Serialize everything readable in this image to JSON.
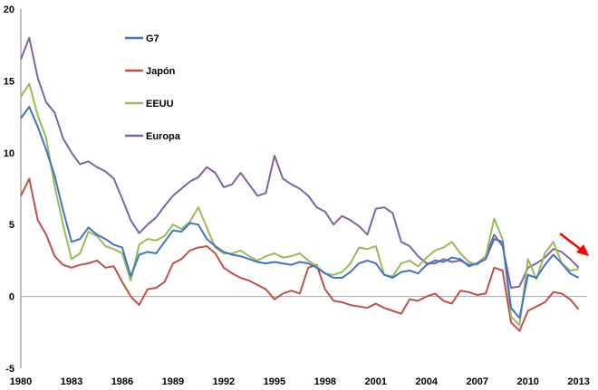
{
  "chart_data": {
    "type": "line",
    "title": "",
    "xlabel": "",
    "ylabel": "",
    "xlim": [
      1980,
      2013.5
    ],
    "ylim": [
      -5,
      20
    ],
    "yticks": [
      -5,
      0,
      5,
      10,
      15,
      20
    ],
    "xticks": [
      1980,
      1983,
      1986,
      1989,
      1992,
      1995,
      1998,
      2001,
      2004,
      2007,
      2010,
      2013
    ],
    "legend": "top-left",
    "colors": {
      "G7": "#4472C4",
      "Japon": "#C0504D",
      "EEUU": "#9BBB59",
      "Europa": "#8064A2",
      "arrow": "#FF0000",
      "zero_line": "#A6A6A6",
      "axis": "#808080"
    },
    "series": [
      {
        "name": "G7",
        "x": [
          1980,
          1980.5,
          1981,
          1981.5,
          1982,
          1982.5,
          1983,
          1983.5,
          1984,
          1984.5,
          1985,
          1985.5,
          1986,
          1986.5,
          1987,
          1987.5,
          1988,
          1988.5,
          1989,
          1989.5,
          1990,
          1990.5,
          1991,
          1991.5,
          1992,
          1992.5,
          1993,
          1993.5,
          1994,
          1994.5,
          1995,
          1995.5,
          1996,
          1996.5,
          1997,
          1997.5,
          1998,
          1998.5,
          1999,
          1999.5,
          2000,
          2000.5,
          2001,
          2001.5,
          2002,
          2002.5,
          2003,
          2003.5,
          2004,
          2004.5,
          2005,
          2005.5,
          2006,
          2006.5,
          2007,
          2007.5,
          2008,
          2008.5,
          2009,
          2009.5,
          2010,
          2010.5,
          2011,
          2011.5,
          2012,
          2012.5,
          2013
        ],
        "values": [
          12.4,
          13.2,
          11.8,
          10.2,
          8.4,
          6.0,
          3.8,
          4.0,
          4.8,
          4.3,
          4.0,
          3.6,
          3.4,
          1.4,
          2.9,
          3.1,
          3.0,
          3.8,
          4.6,
          4.5,
          5.1,
          5.0,
          4.0,
          3.5,
          3.1,
          2.9,
          2.8,
          2.6,
          2.4,
          2.3,
          2.4,
          2.3,
          2.2,
          2.4,
          2.3,
          2.0,
          1.6,
          1.3,
          1.3,
          1.7,
          2.3,
          2.5,
          2.3,
          1.5,
          1.3,
          1.7,
          1.8,
          1.6,
          2.2,
          2.5,
          2.4,
          2.7,
          2.6,
          2.1,
          2.3,
          2.6,
          4.0,
          3.8,
          -0.8,
          -1.5,
          1.5,
          1.3,
          2.2,
          2.9,
          2.3,
          1.6,
          1.3
        ]
      },
      {
        "name": "Japón",
        "x": [
          1980,
          1980.5,
          1981,
          1981.5,
          1982,
          1982.5,
          1983,
          1983.5,
          1984,
          1984.5,
          1985,
          1985.5,
          1986,
          1986.5,
          1987,
          1987.5,
          1988,
          1988.5,
          1989,
          1989.5,
          1990,
          1990.5,
          1991,
          1991.5,
          1992,
          1992.5,
          1993,
          1993.5,
          1994,
          1994.5,
          1995,
          1995.5,
          1996,
          1996.5,
          1997,
          1997.5,
          1998,
          1998.5,
          1999,
          1999.5,
          2000,
          2000.5,
          2001,
          2001.5,
          2002,
          2002.5,
          2003,
          2003.5,
          2004,
          2004.5,
          2005,
          2005.5,
          2006,
          2006.5,
          2007,
          2007.5,
          2008,
          2008.5,
          2009,
          2009.5,
          2010,
          2010.5,
          2011,
          2011.5,
          2012,
          2012.5,
          2013
        ],
        "values": [
          7.0,
          8.2,
          5.3,
          4.3,
          2.8,
          2.2,
          2.0,
          2.2,
          2.3,
          2.5,
          2.0,
          2.1,
          1.0,
          0.0,
          -0.6,
          0.5,
          0.6,
          1.0,
          2.3,
          2.6,
          3.2,
          3.4,
          3.5,
          3.0,
          2.0,
          1.6,
          1.3,
          1.1,
          0.8,
          0.5,
          -0.2,
          0.2,
          0.4,
          0.2,
          2.0,
          2.2,
          0.5,
          -0.3,
          -0.4,
          -0.6,
          -0.7,
          -0.8,
          -0.5,
          -0.8,
          -1.0,
          -1.2,
          -0.2,
          -0.3,
          0.0,
          0.2,
          -0.3,
          -0.5,
          0.4,
          0.3,
          0.1,
          0.2,
          2.0,
          1.8,
          -1.8,
          -2.4,
          -1.0,
          -0.7,
          -0.4,
          0.3,
          0.2,
          -0.2,
          -0.9
        ]
      },
      {
        "name": "EEUU",
        "x": [
          1980,
          1980.5,
          1981,
          1981.5,
          1982,
          1982.5,
          1983,
          1983.5,
          1984,
          1984.5,
          1985,
          1985.5,
          1986,
          1986.5,
          1987,
          1987.5,
          1988,
          1988.5,
          1989,
          1989.5,
          1990,
          1990.5,
          1991,
          1991.5,
          1992,
          1992.5,
          1993,
          1993.5,
          1994,
          1994.5,
          1995,
          1995.5,
          1996,
          1996.5,
          1997,
          1997.5,
          1998,
          1998.5,
          1999,
          1999.5,
          2000,
          2000.5,
          2001,
          2001.5,
          2002,
          2002.5,
          2003,
          2003.5,
          2004,
          2004.5,
          2005,
          2005.5,
          2006,
          2006.5,
          2007,
          2007.5,
          2008,
          2008.5,
          2009,
          2009.5,
          2010,
          2010.5,
          2011,
          2011.5,
          2012,
          2012.5,
          2013
        ],
        "values": [
          13.9,
          14.8,
          12.6,
          11.0,
          7.7,
          5.0,
          2.6,
          3.0,
          4.5,
          4.2,
          3.5,
          3.3,
          3.0,
          1.1,
          3.6,
          4.0,
          3.9,
          4.2,
          5.0,
          4.7,
          5.2,
          6.2,
          4.8,
          3.4,
          3.0,
          3.0,
          3.2,
          2.8,
          2.5,
          2.8,
          3.0,
          2.7,
          2.8,
          3.0,
          2.5,
          2.1,
          1.6,
          1.5,
          1.7,
          2.3,
          3.4,
          3.3,
          3.5,
          1.5,
          1.4,
          2.3,
          2.5,
          2.1,
          2.7,
          3.2,
          3.4,
          3.8,
          3.0,
          2.4,
          2.2,
          2.8,
          5.4,
          4.0,
          -1.4,
          -2.0,
          2.6,
          1.2,
          3.0,
          3.8,
          2.3,
          1.8,
          1.9
        ]
      },
      {
        "name": "Europa",
        "x": [
          1980,
          1980.5,
          1981,
          1981.5,
          1982,
          1982.5,
          1983,
          1983.5,
          1984,
          1984.5,
          1985,
          1985.5,
          1986,
          1986.5,
          1987,
          1987.5,
          1988,
          1988.5,
          1989,
          1989.5,
          1990,
          1990.5,
          1991,
          1991.5,
          1992,
          1992.5,
          1993,
          1993.5,
          1994,
          1994.5,
          1995,
          1995.5,
          1996,
          1996.5,
          1997,
          1997.5,
          1998,
          1998.5,
          1999,
          1999.5,
          2000,
          2000.5,
          2001,
          2001.5,
          2002,
          2002.5,
          2003,
          2003.5,
          2004,
          2004.5,
          2005,
          2005.5,
          2006,
          2006.5,
          2007,
          2007.5,
          2008,
          2008.5,
          2009,
          2009.5,
          2010,
          2010.5,
          2011,
          2011.5,
          2012,
          2012.5,
          2013
        ],
        "values": [
          16.5,
          18.0,
          15.2,
          13.5,
          12.8,
          11.0,
          10.0,
          9.2,
          9.4,
          9.0,
          8.7,
          8.2,
          6.8,
          5.3,
          4.4,
          5.0,
          5.5,
          6.3,
          7.0,
          7.5,
          8.0,
          8.3,
          9.0,
          8.6,
          7.6,
          7.8,
          8.6,
          7.8,
          7.0,
          7.2,
          9.8,
          8.2,
          7.8,
          7.5,
          7.0,
          6.2,
          5.9,
          5.0,
          5.6,
          5.3,
          4.9,
          4.3,
          6.1,
          6.2,
          5.8,
          3.8,
          3.5,
          2.8,
          2.3,
          2.3,
          2.6,
          2.4,
          2.5,
          2.2,
          2.3,
          2.8,
          4.3,
          3.5,
          0.6,
          0.7,
          2.0,
          2.3,
          2.7,
          3.3,
          3.1,
          2.6,
          2.0
        ]
      }
    ],
    "annotation": "red arrow pointing down-right at 2012-2013 indicating declining inflation"
  },
  "legend": {
    "items": [
      {
        "label": "G7",
        "color": "#4472C4"
      },
      {
        "label": "Japón",
        "color": "#C0504D"
      },
      {
        "label": "EEUU",
        "color": "#9BBB59"
      },
      {
        "label": "Europa",
        "color": "#8064A2"
      }
    ]
  }
}
